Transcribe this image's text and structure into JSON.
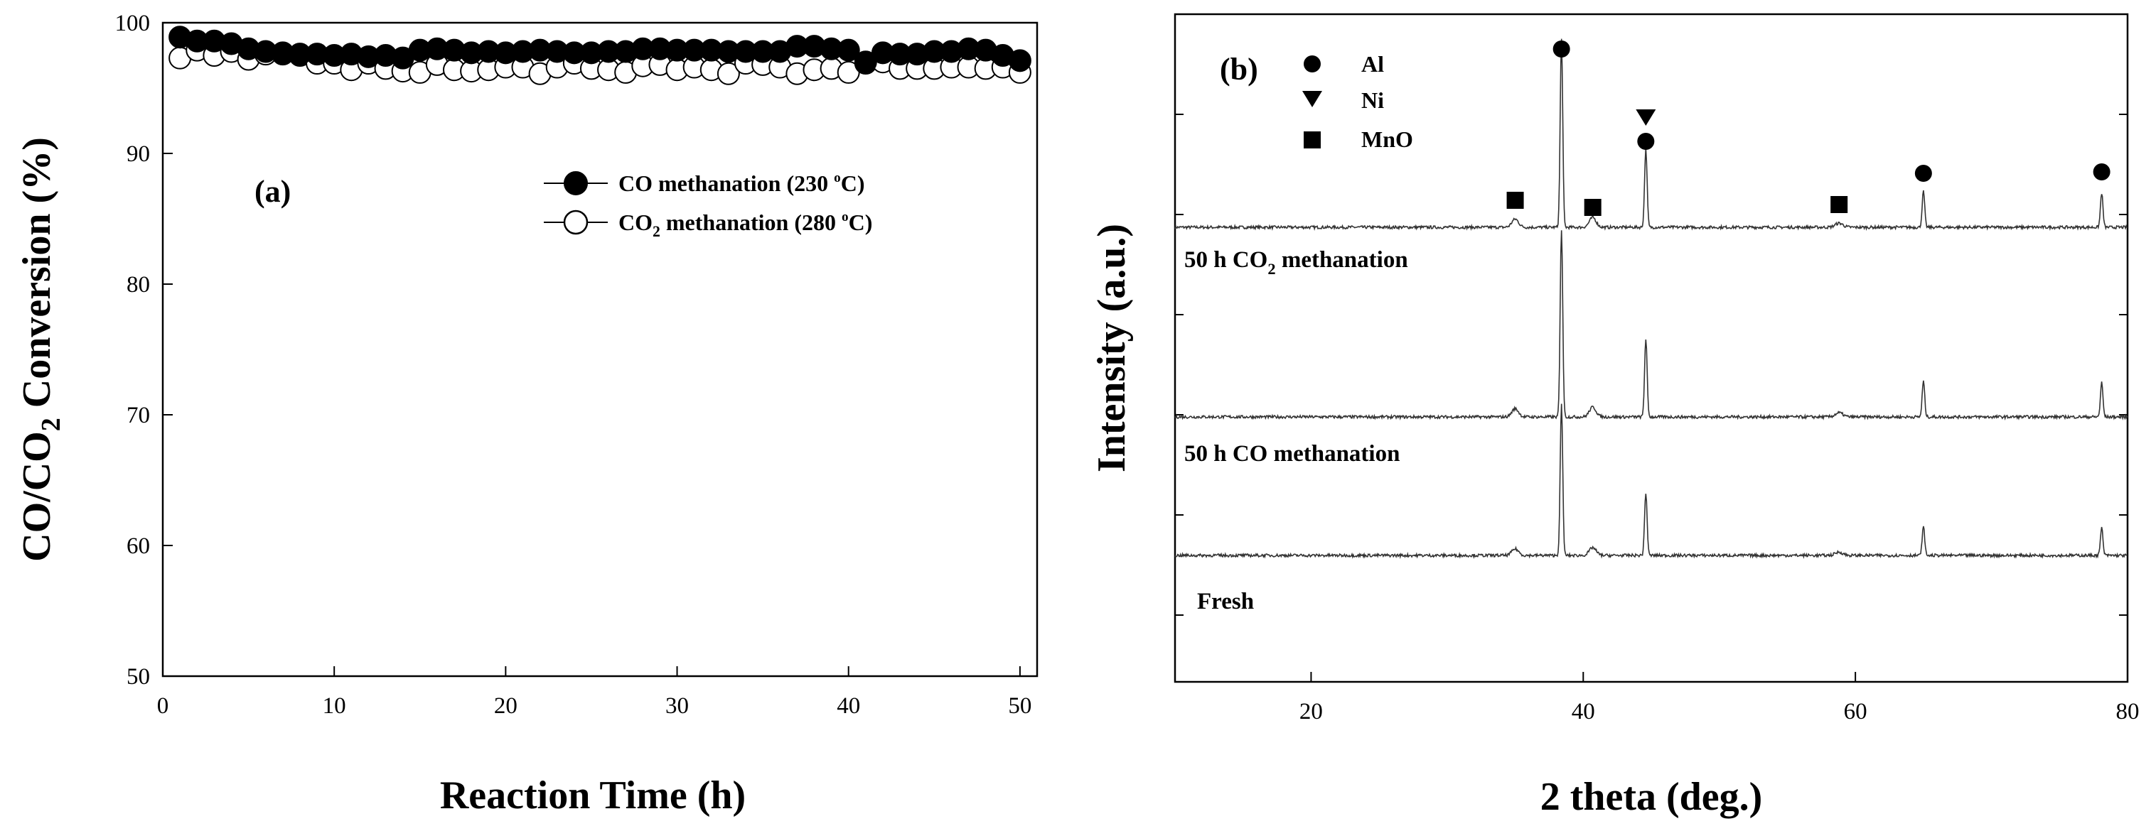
{
  "chart_data": [
    {
      "panel": "(a)",
      "type": "scatter",
      "xlabel": "Reaction Time (h)",
      "ylabel": "CO/CO2 Conversion (%)",
      "xlim": [
        0,
        51
      ],
      "ylim": [
        50,
        100
      ],
      "xticks": [
        0,
        10,
        20,
        30,
        40,
        50
      ],
      "yticks": [
        50,
        60,
        70,
        80,
        90,
        100
      ],
      "legend_position": "upper-right",
      "series": [
        {
          "name": "CO methanation (230 oC)",
          "marker": "filled-circle",
          "x": [
            1,
            2,
            3,
            4,
            5,
            6,
            7,
            8,
            9,
            10,
            11,
            12,
            13,
            14,
            15,
            16,
            17,
            18,
            19,
            20,
            21,
            22,
            23,
            24,
            25,
            26,
            27,
            28,
            29,
            30,
            31,
            32,
            33,
            34,
            35,
            36,
            37,
            38,
            39,
            40,
            41,
            42,
            43,
            44,
            45,
            46,
            47,
            48,
            49,
            50
          ],
          "values": [
            98.9,
            98.6,
            98.6,
            98.4,
            98.0,
            97.8,
            97.7,
            97.6,
            97.6,
            97.5,
            97.6,
            97.4,
            97.5,
            97.3,
            97.9,
            98.0,
            97.9,
            97.7,
            97.8,
            97.7,
            97.8,
            97.9,
            97.8,
            97.7,
            97.7,
            97.8,
            97.8,
            98.0,
            98.0,
            97.9,
            97.9,
            97.9,
            97.8,
            97.8,
            97.8,
            97.8,
            98.2,
            98.2,
            98.0,
            97.9,
            97.0,
            97.7,
            97.6,
            97.6,
            97.8,
            97.8,
            98.0,
            97.9,
            97.5,
            97.1
          ]
        },
        {
          "name": "CO2 methanation (280 oC)",
          "marker": "open-circle",
          "x": [
            1,
            2,
            3,
            4,
            5,
            6,
            7,
            8,
            9,
            10,
            11,
            12,
            13,
            14,
            15,
            16,
            17,
            18,
            19,
            20,
            21,
            22,
            23,
            24,
            25,
            26,
            27,
            28,
            29,
            30,
            31,
            32,
            33,
            34,
            35,
            36,
            37,
            38,
            39,
            40,
            41,
            42,
            43,
            44,
            45,
            46,
            47,
            48,
            49,
            50
          ],
          "values": [
            97.3,
            97.9,
            97.5,
            97.8,
            97.2,
            97.6,
            97.6,
            97.5,
            96.9,
            96.9,
            96.4,
            96.9,
            96.5,
            96.3,
            96.2,
            96.8,
            96.4,
            96.3,
            96.4,
            96.6,
            96.6,
            96.1,
            96.6,
            96.9,
            96.5,
            96.4,
            96.2,
            96.7,
            96.8,
            96.4,
            96.6,
            96.4,
            96.1,
            96.9,
            96.8,
            96.6,
            96.1,
            96.4,
            96.5,
            96.2,
            96.9,
            97.0,
            96.5,
            96.5,
            96.5,
            96.6,
            96.6,
            96.5,
            96.6,
            96.2
          ]
        }
      ],
      "annotations": [
        "(a)"
      ]
    },
    {
      "panel": "(b)",
      "type": "line",
      "xlabel": "2 theta (deg.)",
      "ylabel": "Intensity (a.u.)",
      "xlim": [
        10,
        80
      ],
      "xticks": [
        20,
        40,
        60,
        80
      ],
      "y_tick_labels": false,
      "legend_position": "upper-left",
      "legend": [
        {
          "symbol": "●",
          "label": "Al"
        },
        {
          "symbol": "▼",
          "label": "Ni"
        },
        {
          "symbol": "■",
          "label": "MnO"
        }
      ],
      "series": [
        {
          "name": "50 h CO2 methanation",
          "offset": 2.6,
          "scale": 1.0
        },
        {
          "name": "50 h CO methanation",
          "offset": 1.2,
          "scale": 1.0
        },
        {
          "name": "Fresh",
          "offset": 0.2,
          "scale": 0.8
        }
      ],
      "peaks": [
        {
          "x": 35.0,
          "height": 0.05,
          "width": 0.35
        },
        {
          "x": 38.4,
          "height": 1.15,
          "width": 0.13
        },
        {
          "x": 40.7,
          "height": 0.06,
          "width": 0.35
        },
        {
          "x": 44.6,
          "height": 0.48,
          "width": 0.13
        },
        {
          "x": 58.8,
          "height": 0.025,
          "width": 0.4
        },
        {
          "x": 65.0,
          "height": 0.22,
          "width": 0.13
        },
        {
          "x": 78.1,
          "height": 0.21,
          "width": 0.13
        }
      ],
      "phase_markers": [
        {
          "phase": "MnO",
          "symbol": "■",
          "x": 35.0
        },
        {
          "phase": "Al",
          "symbol": "●",
          "x": 38.4
        },
        {
          "phase": "MnO",
          "symbol": "■",
          "x": 40.7
        },
        {
          "phase": "Ni",
          "symbol": "▼",
          "x": 44.6
        },
        {
          "phase": "Al",
          "symbol": "●",
          "x": 44.6
        },
        {
          "phase": "MnO",
          "symbol": "■",
          "x": 58.8
        },
        {
          "phase": "Al",
          "symbol": "●",
          "x": 65.0
        },
        {
          "phase": "Al",
          "symbol": "●",
          "x": 78.1
        }
      ],
      "annotations": [
        "(b)"
      ]
    }
  ]
}
